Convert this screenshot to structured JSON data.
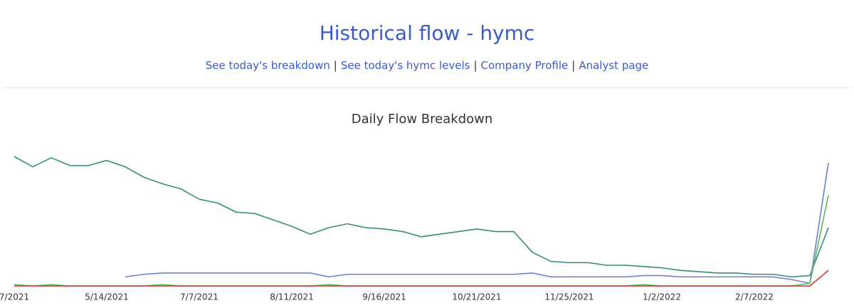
{
  "header": {
    "title": "Historical flow - hymc",
    "links": [
      "See today's breakdown",
      "See today's hymc levels",
      "Company Profile",
      "Analyst page"
    ],
    "separator": "|"
  },
  "chart_data": {
    "type": "line",
    "title": "Daily Flow Breakdown",
    "categories": [
      "7/2021",
      null,
      null,
      null,
      null,
      "5/14/2021",
      null,
      null,
      null,
      null,
      "7/7/2021",
      null,
      null,
      null,
      null,
      "8/11/2021",
      null,
      null,
      null,
      null,
      "9/16/2021",
      null,
      null,
      null,
      null,
      "10/21/2021",
      null,
      null,
      null,
      null,
      "11/25/2021",
      null,
      null,
      null,
      null,
      "1/2/2022",
      null,
      null,
      null,
      null,
      "2/7/2022",
      null,
      null,
      null,
      null
    ],
    "ylim": [
      0,
      100
    ],
    "series": [
      {
        "color": "#3a8a82",
        "values": [
          100,
          92,
          99,
          93,
          93,
          97,
          92,
          84,
          79,
          75,
          67,
          64,
          57,
          56,
          51,
          46,
          40,
          45,
          48,
          45,
          44,
          42,
          38,
          40,
          42,
          44,
          42,
          42,
          26,
          19,
          18,
          18,
          16,
          16,
          15,
          14,
          12,
          11,
          10,
          10,
          9,
          9,
          7,
          8,
          45
        ]
      },
      {
        "color": "#6c7fd4",
        "values": [
          null,
          null,
          null,
          null,
          null,
          null,
          7,
          9,
          10,
          10,
          10,
          10,
          10,
          10,
          10,
          10,
          10,
          7,
          9,
          9,
          9,
          9,
          9,
          9,
          9,
          9,
          9,
          9,
          10,
          7,
          7,
          7,
          7,
          7,
          8,
          8,
          7,
          7,
          7,
          7,
          7,
          7,
          5,
          2,
          95
        ]
      },
      {
        "color": "#5cb85c",
        "values": [
          1,
          0,
          1,
          0,
          0,
          0,
          0,
          0,
          1,
          0,
          0,
          0,
          0,
          0,
          0,
          0,
          0,
          1,
          0,
          0,
          0,
          0,
          0,
          0,
          0,
          0,
          0,
          0,
          0,
          0,
          0,
          0,
          0,
          0,
          1,
          0,
          0,
          0,
          0,
          0,
          0,
          0,
          0,
          2,
          70
        ]
      },
      {
        "color": "#d0342c",
        "values": [
          0,
          0,
          0,
          0,
          0,
          0,
          0,
          0,
          0,
          0,
          0,
          0,
          0,
          0,
          0,
          0,
          0,
          0,
          0,
          0,
          0,
          0,
          0,
          0,
          0,
          0,
          0,
          0,
          0,
          0,
          0,
          0,
          0,
          0,
          0,
          0,
          0,
          0,
          0,
          0,
          0,
          0,
          0,
          0,
          12
        ]
      }
    ]
  }
}
